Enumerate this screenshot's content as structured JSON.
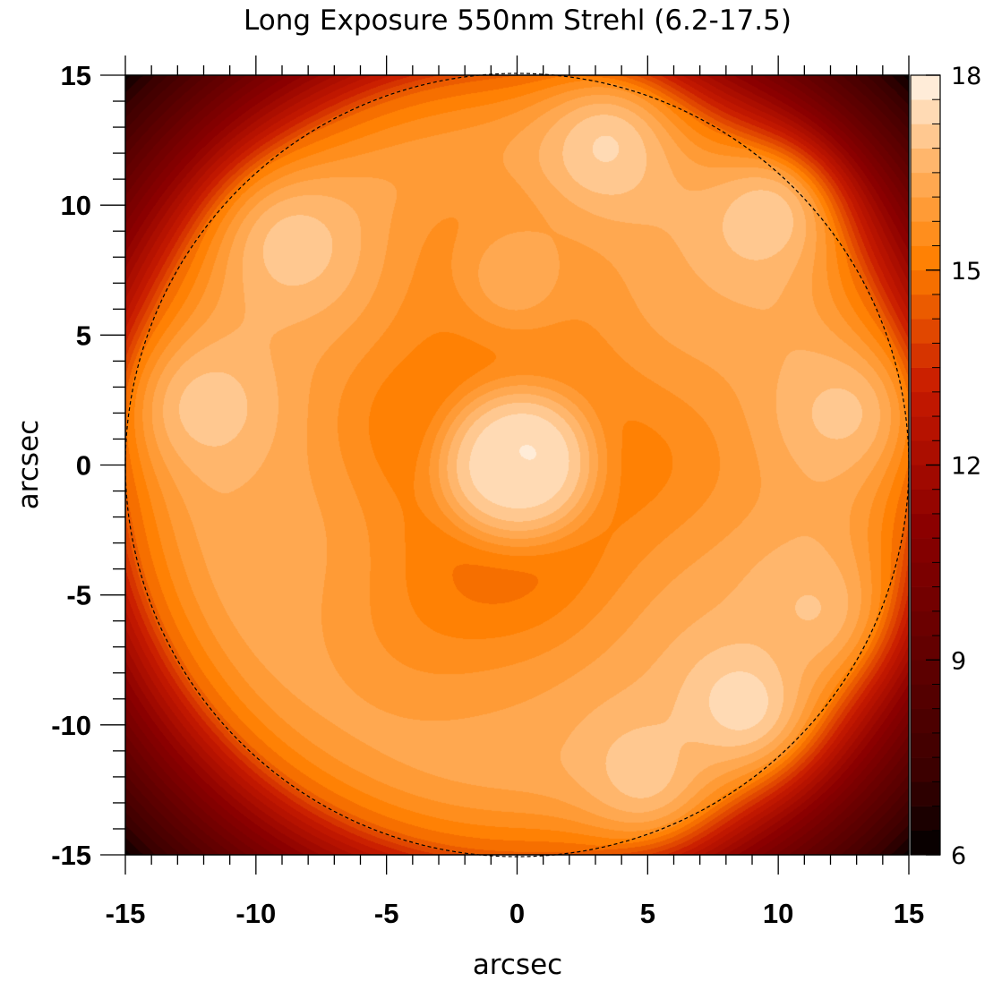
{
  "chart_data": {
    "type": "heatmap",
    "title": "Long Exposure 550nm Strehl (6.2-17.5)",
    "xlabel": "arcsec",
    "ylabel": "arcsec",
    "xlim": [
      -15,
      15
    ],
    "ylim": [
      -15,
      15
    ],
    "x_ticks": [
      "-15",
      "-10",
      "-5",
      "0",
      "5",
      "10",
      "15"
    ],
    "y_ticks": [
      "15",
      "10",
      "5",
      "0",
      "-5",
      "-10",
      "-15"
    ],
    "x_tick_values": [
      -15,
      -10,
      -5,
      0,
      5,
      10,
      15
    ],
    "y_tick_values": [
      15,
      10,
      5,
      0,
      -5,
      -10,
      -15
    ],
    "colorbar": {
      "range": [
        6,
        18
      ],
      "levels": 32,
      "ticks": [
        "18",
        "15",
        "12",
        "9",
        "6"
      ],
      "tick_values": [
        18,
        15,
        12,
        9,
        6
      ],
      "colors": [
        "#000000",
        "#3a0000",
        "#8a0000",
        "#c81a00",
        "#ff7f00",
        "#ffb060",
        "#fff5ea"
      ]
    },
    "value_range": [
      6.2,
      17.5
    ],
    "field_radius_arcsec": 15,
    "grid": false,
    "field": {
      "corner_value": 6.2,
      "edge_value": 14.5,
      "ring_value": 16.4,
      "center_value": 17.1,
      "peak_value": 17.5,
      "inner_ring_value": 15.6,
      "hotspots": [
        {
          "x": 3.4,
          "y": 12.2,
          "value": 17.3
        },
        {
          "x": 9.5,
          "y": 9.5,
          "value": 17.2
        },
        {
          "x": -8.5,
          "y": 8.4,
          "value": 17.1
        },
        {
          "x": -11.8,
          "y": 2.2,
          "value": 17.1
        },
        {
          "x": 12.4,
          "y": 2.0,
          "value": 17.0
        },
        {
          "x": 8.6,
          "y": -9.2,
          "value": 17.5
        },
        {
          "x": 4.8,
          "y": -11.8,
          "value": 17.1
        },
        {
          "x": 11.2,
          "y": -5.5,
          "value": 16.9
        },
        {
          "x": -0.1,
          "y": 7.3,
          "value": 16.5
        }
      ],
      "ring_dips": [
        {
          "x": 0.5,
          "y": -4.8,
          "value": 15.6
        },
        {
          "x": 0.2,
          "y": 6.8,
          "value": 15.6
        },
        {
          "x": -5.0,
          "y": 2.0,
          "value": 15.6
        },
        {
          "x": 6.4,
          "y": 0.2,
          "value": 15.6
        },
        {
          "x": -3.8,
          "y": -6.0,
          "value": 15.6
        },
        {
          "x": -1.8,
          "y": 8.0,
          "value": 15.6
        }
      ]
    }
  }
}
